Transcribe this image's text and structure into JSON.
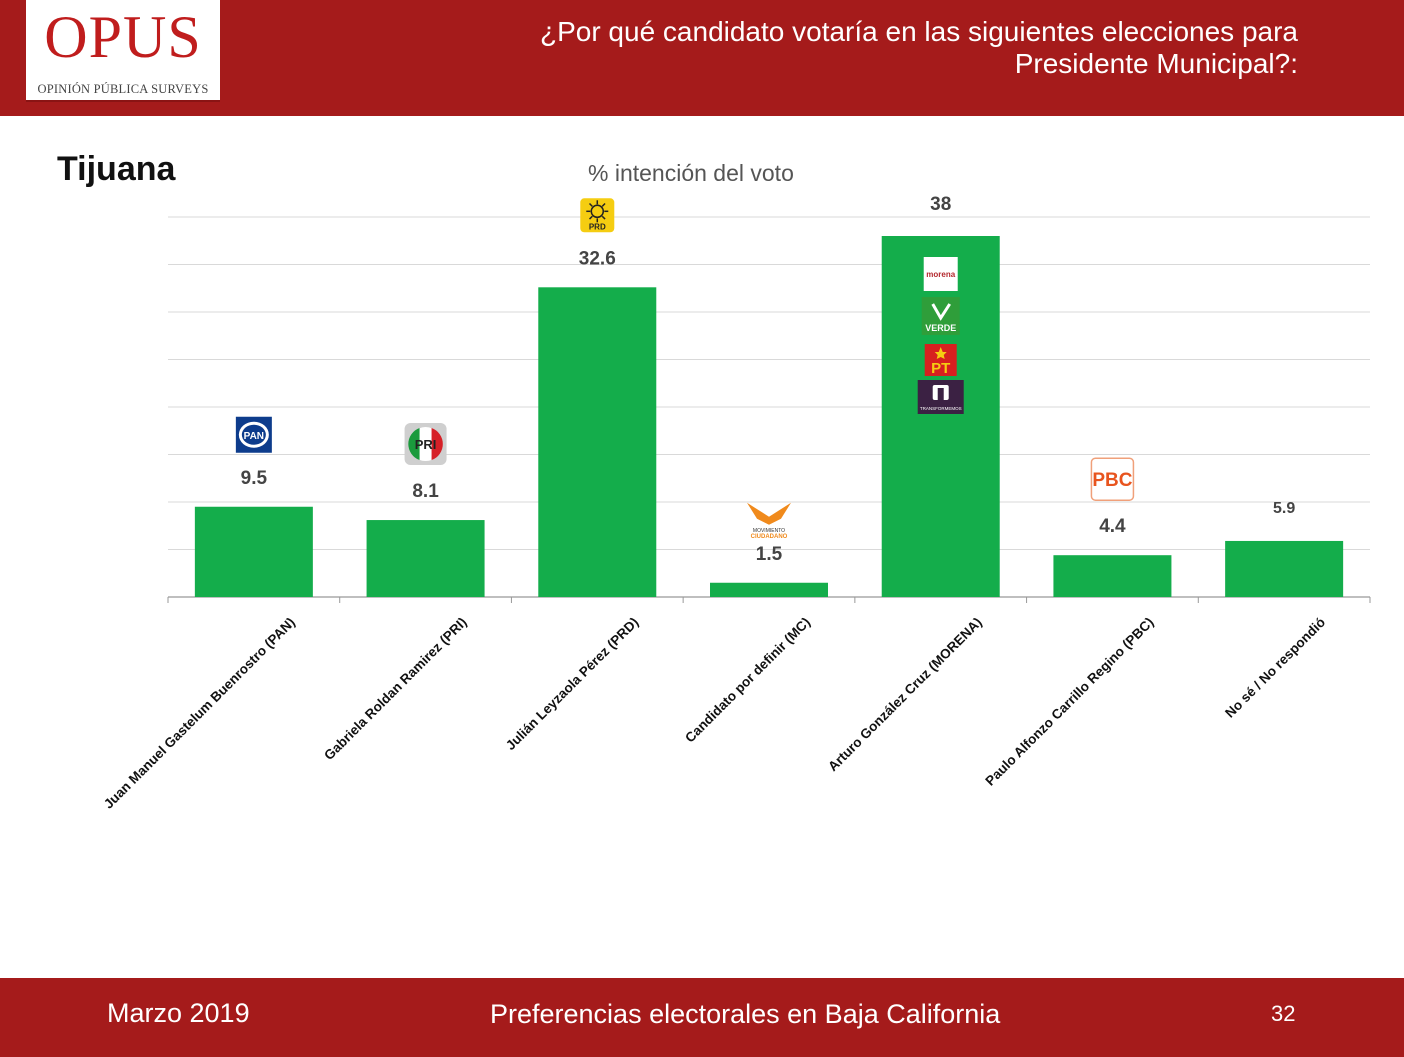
{
  "header": {
    "logo_text": "OPUS",
    "logo_subtitle": "OPINIÓN PÚBLICA SURVEYS",
    "question_line1": "¿Por qué candidato votaría en las siguientes elecciones para",
    "question_line2": "Presidente Municipal?:"
  },
  "city": "Tijuana",
  "footer": {
    "date": "Marzo 2019",
    "center": "Preferencias electorales en Baja California",
    "page": "32"
  },
  "colors": {
    "brand_red": "#a51b1b",
    "bar_green": "#14ad4b"
  },
  "chart_data": {
    "type": "bar",
    "title": "% intención del voto",
    "categories": [
      "Juan Manuel Gastelum Buenrostro (PAN)",
      "Gabriela Roldan Ramirez (PRI)",
      "Julián Leyzaola Pérez (PRD)",
      "Candidato por definir (MC)",
      "Arturo González Cruz (MORENA)",
      "Paulo Alfonzo Carrillo Regino (PBC)",
      "No sé  / No respondió"
    ],
    "values": [
      9.5,
      8.1,
      32.6,
      1.5,
      38,
      4.4,
      5.9
    ],
    "value_labels": [
      "9.5",
      "8.1",
      "32.6",
      "1.5",
      "38",
      "4.4",
      "5.9"
    ],
    "party_logos": [
      [
        "PAN"
      ],
      [
        "PRI"
      ],
      [
        "PRD"
      ],
      [
        "MOVIMIENTO CIUDADANO"
      ],
      [
        "morena",
        "VERDE",
        "PT",
        "TRANSFORMEMOS"
      ],
      [
        "PBC"
      ],
      []
    ],
    "ylim": [
      0,
      40
    ],
    "grid": true,
    "legend": "none"
  }
}
